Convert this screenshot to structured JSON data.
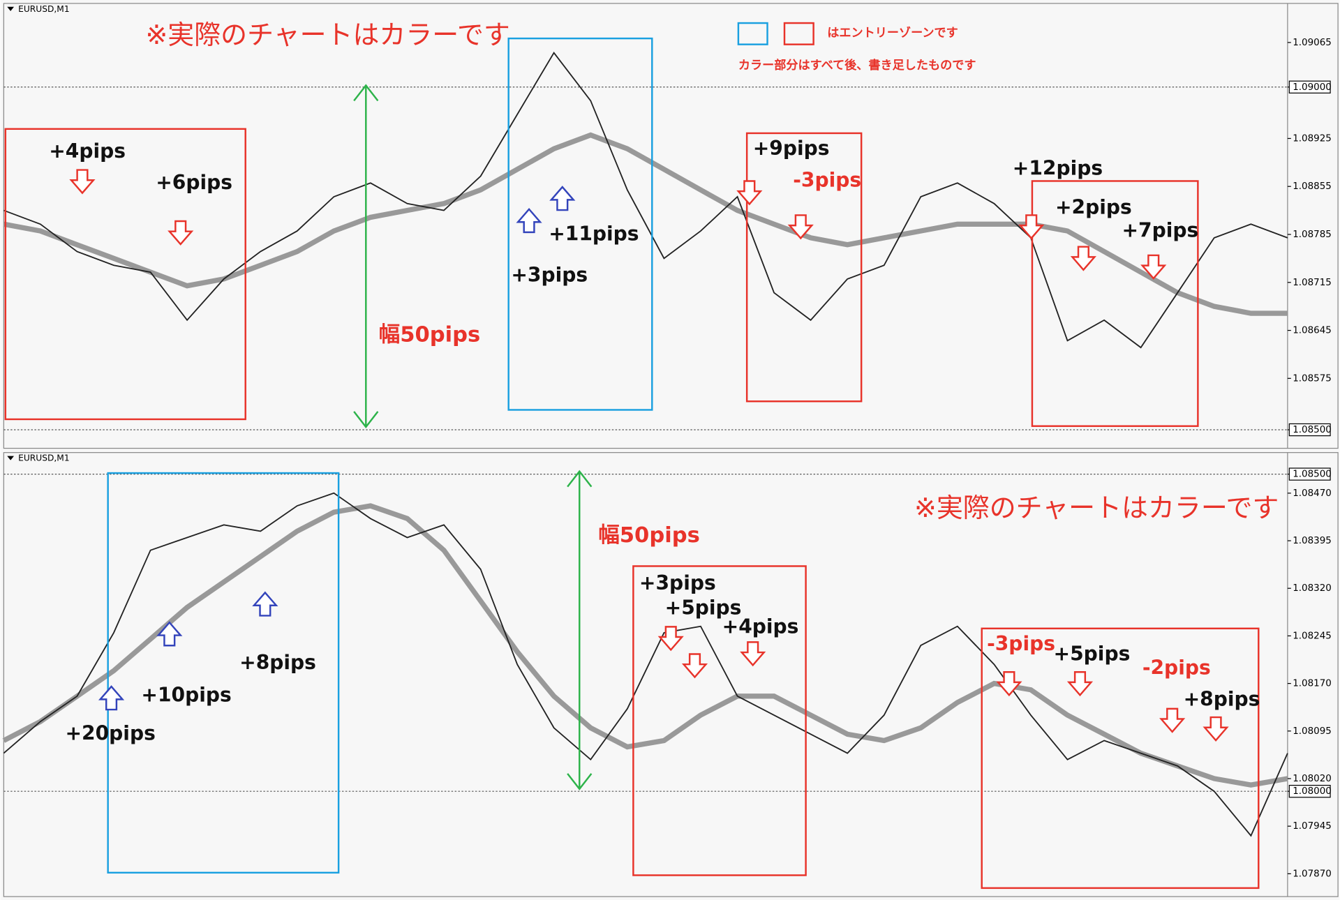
{
  "panels": [
    {
      "symbol": "EURUSD,M1",
      "ylim": [
        1.08473,
        1.09122
      ],
      "yticks": [
        1.09065,
        {
          "value": 1.09,
          "label": "1.09000"
        },
        1.08925,
        1.08855,
        1.08785,
        1.08715,
        1.08645,
        1.08575,
        {
          "value": 1.085,
          "label": "1.08500"
        }
      ],
      "levels": [
        1.09,
        1.085
      ],
      "price": [
        1.0882,
        1.088,
        1.0876,
        1.0874,
        1.0873,
        1.0866,
        1.0872,
        1.0876,
        1.0879,
        1.0884,
        1.0886,
        1.0883,
        1.0882,
        1.0887,
        1.0896,
        1.0905,
        1.0898,
        1.0885,
        1.0875,
        1.0879,
        1.0884,
        1.087,
        1.0866,
        1.0872,
        1.0874,
        1.0884,
        1.0886,
        1.0883,
        1.0878,
        1.0863,
        1.0866,
        1.0862,
        1.087,
        1.0878,
        1.088,
        1.0878
      ],
      "ma": [
        1.088,
        1.0879,
        1.0877,
        1.0875,
        1.0873,
        1.0871,
        1.0872,
        1.0874,
        1.0876,
        1.0879,
        1.0881,
        1.0882,
        1.0883,
        1.0885,
        1.0888,
        1.0891,
        1.0893,
        1.0891,
        1.0888,
        1.0885,
        1.0882,
        1.088,
        1.0878,
        1.0877,
        1.0878,
        1.0879,
        1.088,
        1.088,
        1.088,
        1.0879,
        1.0876,
        1.0873,
        1.087,
        1.0868,
        1.0867,
        1.0867
      ]
    },
    {
      "symbol": "EURUSD,M1",
      "ylim": [
        1.07834,
        1.08534
      ],
      "yticks": [
        {
          "value": 1.085,
          "label": "1.08500"
        },
        {
          "value": 1.0847,
          "label": "1.08470"
        },
        1.08395,
        {
          "value": 1.0832,
          "label": "1.08320"
        },
        1.08245,
        {
          "value": 1.0817,
          "label": "1.08170"
        },
        1.08095,
        {
          "value": 1.0802,
          "label": "1.08020"
        },
        {
          "value": 1.08,
          "label": "1.08000"
        },
        1.07945,
        {
          "value": 1.0787,
          "label": "1.07870"
        }
      ],
      "levels": [
        1.085,
        1.08
      ],
      "price": [
        1.0806,
        1.0811,
        1.0815,
        1.0825,
        1.0838,
        1.084,
        1.0842,
        1.0841,
        1.0845,
        1.0847,
        1.0843,
        1.084,
        1.0842,
        1.0835,
        1.082,
        1.081,
        1.0805,
        1.0813,
        1.0825,
        1.0826,
        1.0815,
        1.0812,
        1.0809,
        1.0806,
        1.0812,
        1.0823,
        1.0826,
        1.082,
        1.0812,
        1.0805,
        1.0808,
        1.0806,
        1.0804,
        1.08,
        1.0793,
        1.0806
      ],
      "ma": [
        1.0808,
        1.0811,
        1.0815,
        1.0819,
        1.0824,
        1.0829,
        1.0833,
        1.0837,
        1.0841,
        1.0844,
        1.0845,
        1.0843,
        1.0838,
        1.083,
        1.0822,
        1.0815,
        1.081,
        1.0807,
        1.0808,
        1.0812,
        1.0815,
        1.0815,
        1.0812,
        1.0809,
        1.0808,
        1.081,
        1.0814,
        1.0817,
        1.0816,
        1.0812,
        1.0809,
        1.0806,
        1.0804,
        1.0802,
        1.0801,
        1.0802
      ]
    }
  ],
  "annotations": {
    "top": {
      "note": "※実際のチャートはカラーです",
      "legend": "はエントリーゾーンです",
      "legend_note": "カラー部分はすべて後、書き足したものです",
      "width": "幅50pips",
      "labels": [
        "+4pips",
        "+6pips",
        "+11pips",
        "+3pips",
        "+9pips",
        "-3pips",
        "+12pips",
        "+2pips",
        "+7pips"
      ]
    },
    "bottom": {
      "note": "※実際のチャートはカラーです",
      "width": "幅50pips",
      "labels": [
        "+20pips",
        "+10pips",
        "+8pips",
        "+3pips",
        "+5pips",
        "+4pips",
        "-3pips",
        "+5pips",
        "-2pips",
        "+8pips"
      ]
    }
  }
}
